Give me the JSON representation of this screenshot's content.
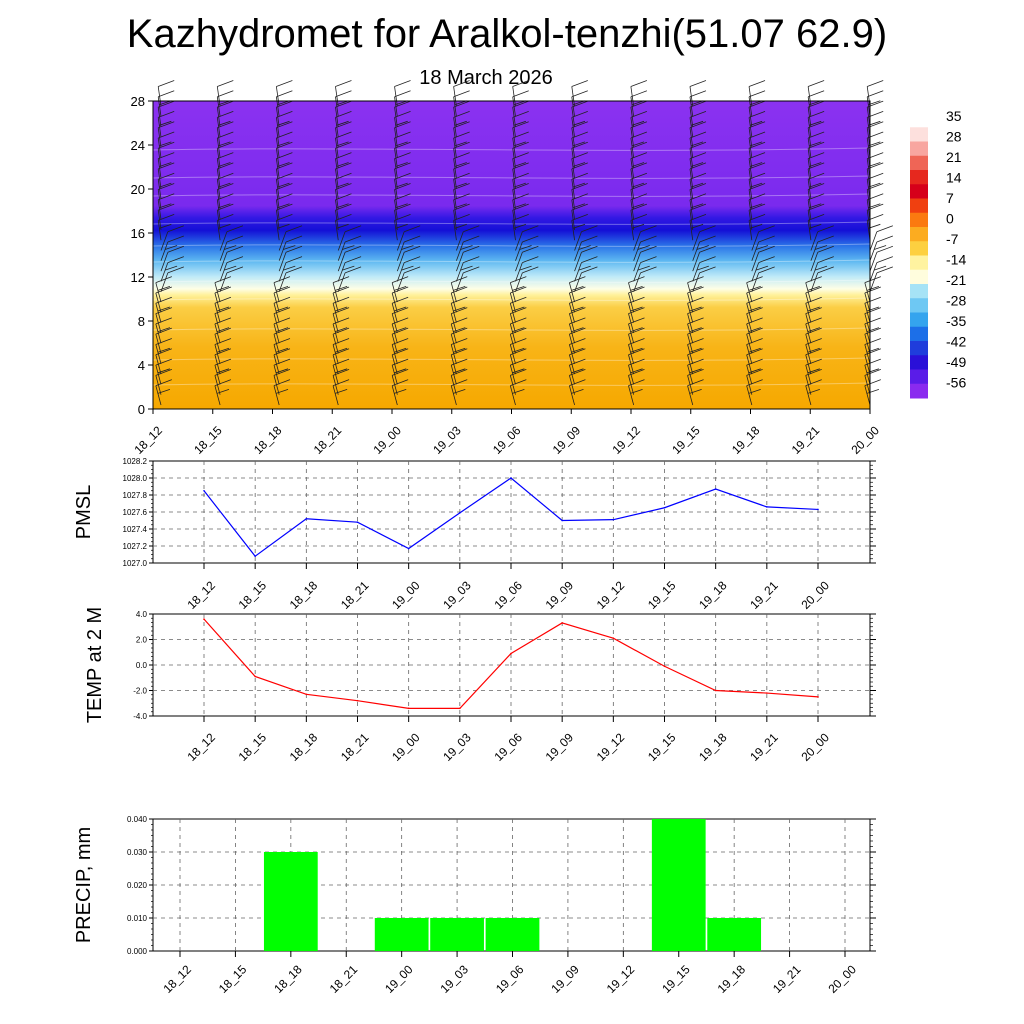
{
  "title": "Kazhydromet for Aralkol-tenzhi(51.07 62.9)",
  "subtitle": "18 March 2026",
  "time_labels": [
    "18_12",
    "18_15",
    "18_18",
    "18_21",
    "19_00",
    "19_03",
    "19_06",
    "19_09",
    "19_12",
    "19_15",
    "19_18",
    "19_21",
    "20_00"
  ],
  "colors": {
    "pmsl_line": "#0000ff",
    "temp_line": "#ff0000",
    "precip_bar": "#00ff00",
    "grid": "#666666"
  },
  "chart_data": [
    {
      "type": "heatmap",
      "name": "temperature_wind_profile",
      "x_categories": [
        "18_12",
        "18_15",
        "18_18",
        "18_21",
        "19_00",
        "19_03",
        "19_06",
        "19_09",
        "19_12",
        "19_15",
        "19_18",
        "19_21",
        "20_00"
      ],
      "y_range": [
        0,
        28
      ],
      "y_ticks": [
        0,
        4,
        8,
        12,
        16,
        20,
        24,
        28
      ],
      "colorbar_labels": [
        "35",
        "28",
        "21",
        "14",
        "7",
        "0",
        "-7",
        "-14",
        "-21",
        "-28",
        "-35",
        "-42",
        "-49",
        "-56"
      ],
      "colorbar_colors": [
        "#ffffff",
        "#fde0dd",
        "#f8a6a0",
        "#ef6556",
        "#e6281e",
        "#d6001a",
        "#f04010",
        "#fb7a10",
        "#fcac20",
        "#fdd040",
        "#fff3a0",
        "#fffddd",
        "#a6e3f6",
        "#6ec8f3",
        "#34a4ee",
        "#1c6fe8",
        "#1f3ddc",
        "#2a10d8",
        "#5a1ce8",
        "#8a2aef"
      ],
      "profile": [
        {
          "height": 0,
          "temp": 3
        },
        {
          "height": 4,
          "temp": 2
        },
        {
          "height": 8,
          "temp": 0
        },
        {
          "height": 11,
          "temp": -7
        },
        {
          "height": 13,
          "temp": -21
        },
        {
          "height": 15,
          "temp": -35
        },
        {
          "height": 17,
          "temp": -56
        },
        {
          "height": 20,
          "temp": -56
        },
        {
          "height": 28,
          "temp": -56
        }
      ]
    },
    {
      "type": "line",
      "name": "PMSL",
      "ylabel": "PMSL",
      "categories": [
        "18_12",
        "18_15",
        "18_18",
        "18_21",
        "19_00",
        "19_03",
        "19_06",
        "19_09",
        "19_12",
        "19_15",
        "19_18",
        "19_21",
        "20_00"
      ],
      "values": [
        1027.85,
        1027.08,
        1027.52,
        1027.48,
        1027.17,
        1027.59,
        1028.0,
        1027.5,
        1027.51,
        1027.65,
        1027.87,
        1027.66,
        1027.63
      ],
      "ylim": [
        1027.0,
        1028.2
      ],
      "yticks": [
        "1027.0",
        "1027.2",
        "1027.4",
        "1027.6",
        "1027.8",
        "1028.0",
        "1028.2"
      ]
    },
    {
      "type": "line",
      "name": "TEMP at 2 M",
      "ylabel": "TEMP at 2 M",
      "categories": [
        "18_12",
        "18_15",
        "18_18",
        "18_21",
        "19_00",
        "19_03",
        "19_06",
        "19_09",
        "19_12",
        "19_15",
        "19_18",
        "19_21",
        "20_00"
      ],
      "values": [
        3.6,
        -0.9,
        -2.3,
        -2.8,
        -3.4,
        -3.4,
        0.9,
        3.3,
        2.1,
        -0.1,
        -2.0,
        -2.2,
        -2.5
      ],
      "ylim": [
        -4.0,
        4.0
      ],
      "yticks": [
        "-4.0",
        "-2.0",
        "0.0",
        "2.0",
        "4.0"
      ]
    },
    {
      "type": "bar",
      "name": "PRECIP, mm",
      "ylabel": "PRECIP, mm",
      "categories": [
        "18_12",
        "18_15",
        "18_18",
        "18_21",
        "19_00",
        "19_03",
        "19_06",
        "19_09",
        "19_12",
        "19_15",
        "19_18",
        "19_21",
        "20_00"
      ],
      "values": [
        0,
        0,
        0.03,
        0,
        0.01,
        0.01,
        0.01,
        0,
        0,
        0.04,
        0.01,
        0,
        0
      ],
      "ylim": [
        0,
        0.04
      ],
      "yticks": [
        "0.000",
        "0.010",
        "0.020",
        "0.030",
        "0.040"
      ]
    }
  ]
}
